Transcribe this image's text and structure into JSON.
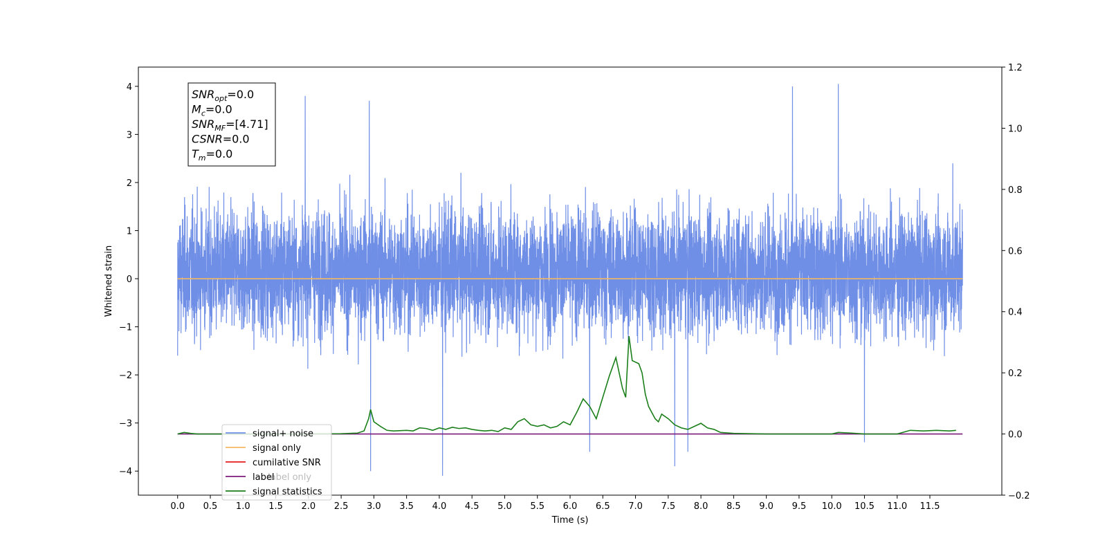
{
  "chart_data": {
    "type": "line",
    "xlabel": "Time (s)",
    "ylabel": "Whitened strain",
    "xlim": [
      -0.6,
      12.6
    ],
    "ylim": [
      -4.5,
      4.4
    ],
    "y2lim": [
      -0.2,
      1.2
    ],
    "x_ticks": [
      0.0,
      0.5,
      1.0,
      1.5,
      2.0,
      2.5,
      3.0,
      3.5,
      4.0,
      4.5,
      5.0,
      5.5,
      6.0,
      6.5,
      7.0,
      7.5,
      8.0,
      8.5,
      9.0,
      9.5,
      10.0,
      10.5,
      11.0,
      11.5
    ],
    "x_tick_labels": [
      "0.0",
      "0.5",
      "1.0",
      "1.5",
      "2.0",
      "2.5",
      "3.0",
      "3.5",
      "4.0",
      "4.5",
      "5.0",
      "5.5",
      "6.0",
      "6.5",
      "7.0",
      "7.5",
      "8.0",
      "8.5",
      "9.0",
      "9.5",
      "10.0",
      "10.5",
      "11.0",
      "11.5"
    ],
    "y_ticks": [
      -4,
      -3,
      -2,
      -1,
      0,
      1,
      2,
      3,
      4
    ],
    "y_tick_labels": [
      "−4",
      "−3",
      "−2",
      "−1",
      "0",
      "1",
      "2",
      "3",
      "4"
    ],
    "y2_ticks": [
      -0.2,
      0.0,
      0.2,
      0.4,
      0.6,
      0.8,
      1.0,
      1.2
    ],
    "y2_tick_labels": [
      "−0.2",
      "0.0",
      "0.2",
      "0.4",
      "0.6",
      "0.8",
      "1.0",
      "1.2"
    ],
    "grid": false,
    "legend_position": "lower-left",
    "series": [
      {
        "name": "signal+ noise",
        "axis": "left",
        "color": "#6f8ee6",
        "description_of_shape": "dense noise across t from 0.0 to 12.0, roughly -2 to 2.5 with spikes to +4.0 and -4.1",
        "notable_extremes": [
          {
            "x": 0.0,
            "y": -1.6
          },
          {
            "x": 1.95,
            "y": 3.8
          },
          {
            "x": 2.93,
            "y": 3.7
          },
          {
            "x": 2.95,
            "y": -4.0
          },
          {
            "x": 4.05,
            "y": -4.1
          },
          {
            "x": 6.3,
            "y": -3.6
          },
          {
            "x": 7.6,
            "y": -3.9
          },
          {
            "x": 7.8,
            "y": -3.6
          },
          {
            "x": 9.4,
            "y": 4.0
          },
          {
            "x": 10.1,
            "y": 4.05
          },
          {
            "x": 10.5,
            "y": -3.4
          },
          {
            "x": 11.85,
            "y": 2.4
          }
        ],
        "x_start": 0.0,
        "x_end": 12.0
      },
      {
        "name": "signal only",
        "axis": "left",
        "color": "#f5b860",
        "x": [
          0.0,
          12.0
        ],
        "y": [
          0.0,
          0.0
        ]
      },
      {
        "name": "cumilative SNR",
        "axis": "left",
        "color": "#e41a1c",
        "x": [],
        "y": []
      },
      {
        "name": "label",
        "axis": "right",
        "color": "#7b1a7b",
        "x": [
          0.0,
          12.0
        ],
        "y": [
          0.0,
          0.0
        ]
      },
      {
        "name": "signal statistics",
        "axis": "right",
        "color": "#1a7f1a",
        "x": [
          0.0,
          0.1,
          0.2,
          0.3,
          0.5,
          1.0,
          1.5,
          2.0,
          2.5,
          2.75,
          2.85,
          2.92,
          2.95,
          3.0,
          3.1,
          3.2,
          3.3,
          3.5,
          3.6,
          3.7,
          3.8,
          3.9,
          4.0,
          4.1,
          4.2,
          4.3,
          4.4,
          4.5,
          4.6,
          4.7,
          4.8,
          4.9,
          5.0,
          5.1,
          5.2,
          5.3,
          5.4,
          5.5,
          5.6,
          5.7,
          5.8,
          5.9,
          6.0,
          6.1,
          6.2,
          6.3,
          6.4,
          6.5,
          6.6,
          6.7,
          6.8,
          6.85,
          6.9,
          6.95,
          7.05,
          7.1,
          7.15,
          7.2,
          7.3,
          7.35,
          7.4,
          7.5,
          7.6,
          7.7,
          7.8,
          7.9,
          8.0,
          8.1,
          8.2,
          8.3,
          8.5,
          9.0,
          9.5,
          10.0,
          10.1,
          10.3,
          10.5,
          10.7,
          11.0,
          11.2,
          11.4,
          11.6,
          11.8,
          11.9
        ],
        "y": [
          0.0,
          0.005,
          0.002,
          0.0,
          0.0,
          0.0,
          0.0,
          0.0,
          0.001,
          0.003,
          0.01,
          0.05,
          0.08,
          0.04,
          0.025,
          0.012,
          0.01,
          0.012,
          0.01,
          0.02,
          0.018,
          0.012,
          0.02,
          0.015,
          0.022,
          0.018,
          0.02,
          0.015,
          0.012,
          0.01,
          0.012,
          0.008,
          0.02,
          0.015,
          0.04,
          0.05,
          0.03,
          0.025,
          0.03,
          0.02,
          0.025,
          0.04,
          0.03,
          0.07,
          0.115,
          0.09,
          0.05,
          0.12,
          0.19,
          0.25,
          0.15,
          0.12,
          0.32,
          0.24,
          0.23,
          0.2,
          0.13,
          0.09,
          0.05,
          0.04,
          0.065,
          0.05,
          0.03,
          0.02,
          0.015,
          0.025,
          0.035,
          0.02,
          0.015,
          0.005,
          0.002,
          0.0,
          0.0,
          0.0,
          0.005,
          0.003,
          0.0,
          0.0,
          0.0,
          0.012,
          0.01,
          0.012,
          0.01,
          0.012
        ]
      }
    ],
    "annotation_lines": [
      {
        "main": "SNR",
        "sub": "opt",
        "rest": "=0.0"
      },
      {
        "main": "M",
        "sub": "c",
        "rest": "=0.0"
      },
      {
        "main": "SNR",
        "sub": "MF",
        "rest": "=[4.71]"
      },
      {
        "main": "CSNR",
        "sub": "",
        "rest": "=0.0"
      },
      {
        "main": "T",
        "sub": "m",
        "rest": "=0.0"
      }
    ],
    "legend_entries": [
      {
        "label": "signal+ noise",
        "color": "#6f8ee6"
      },
      {
        "label": "signal only",
        "color": "#f5b860"
      },
      {
        "label": "cumilative SNR",
        "color": "#e41a1c"
      },
      {
        "label": "label",
        "color": "#7b1a7b"
      },
      {
        "label": "signal statistics",
        "color": "#1a7f1a"
      }
    ],
    "legend_overlap_text": "label only"
  }
}
